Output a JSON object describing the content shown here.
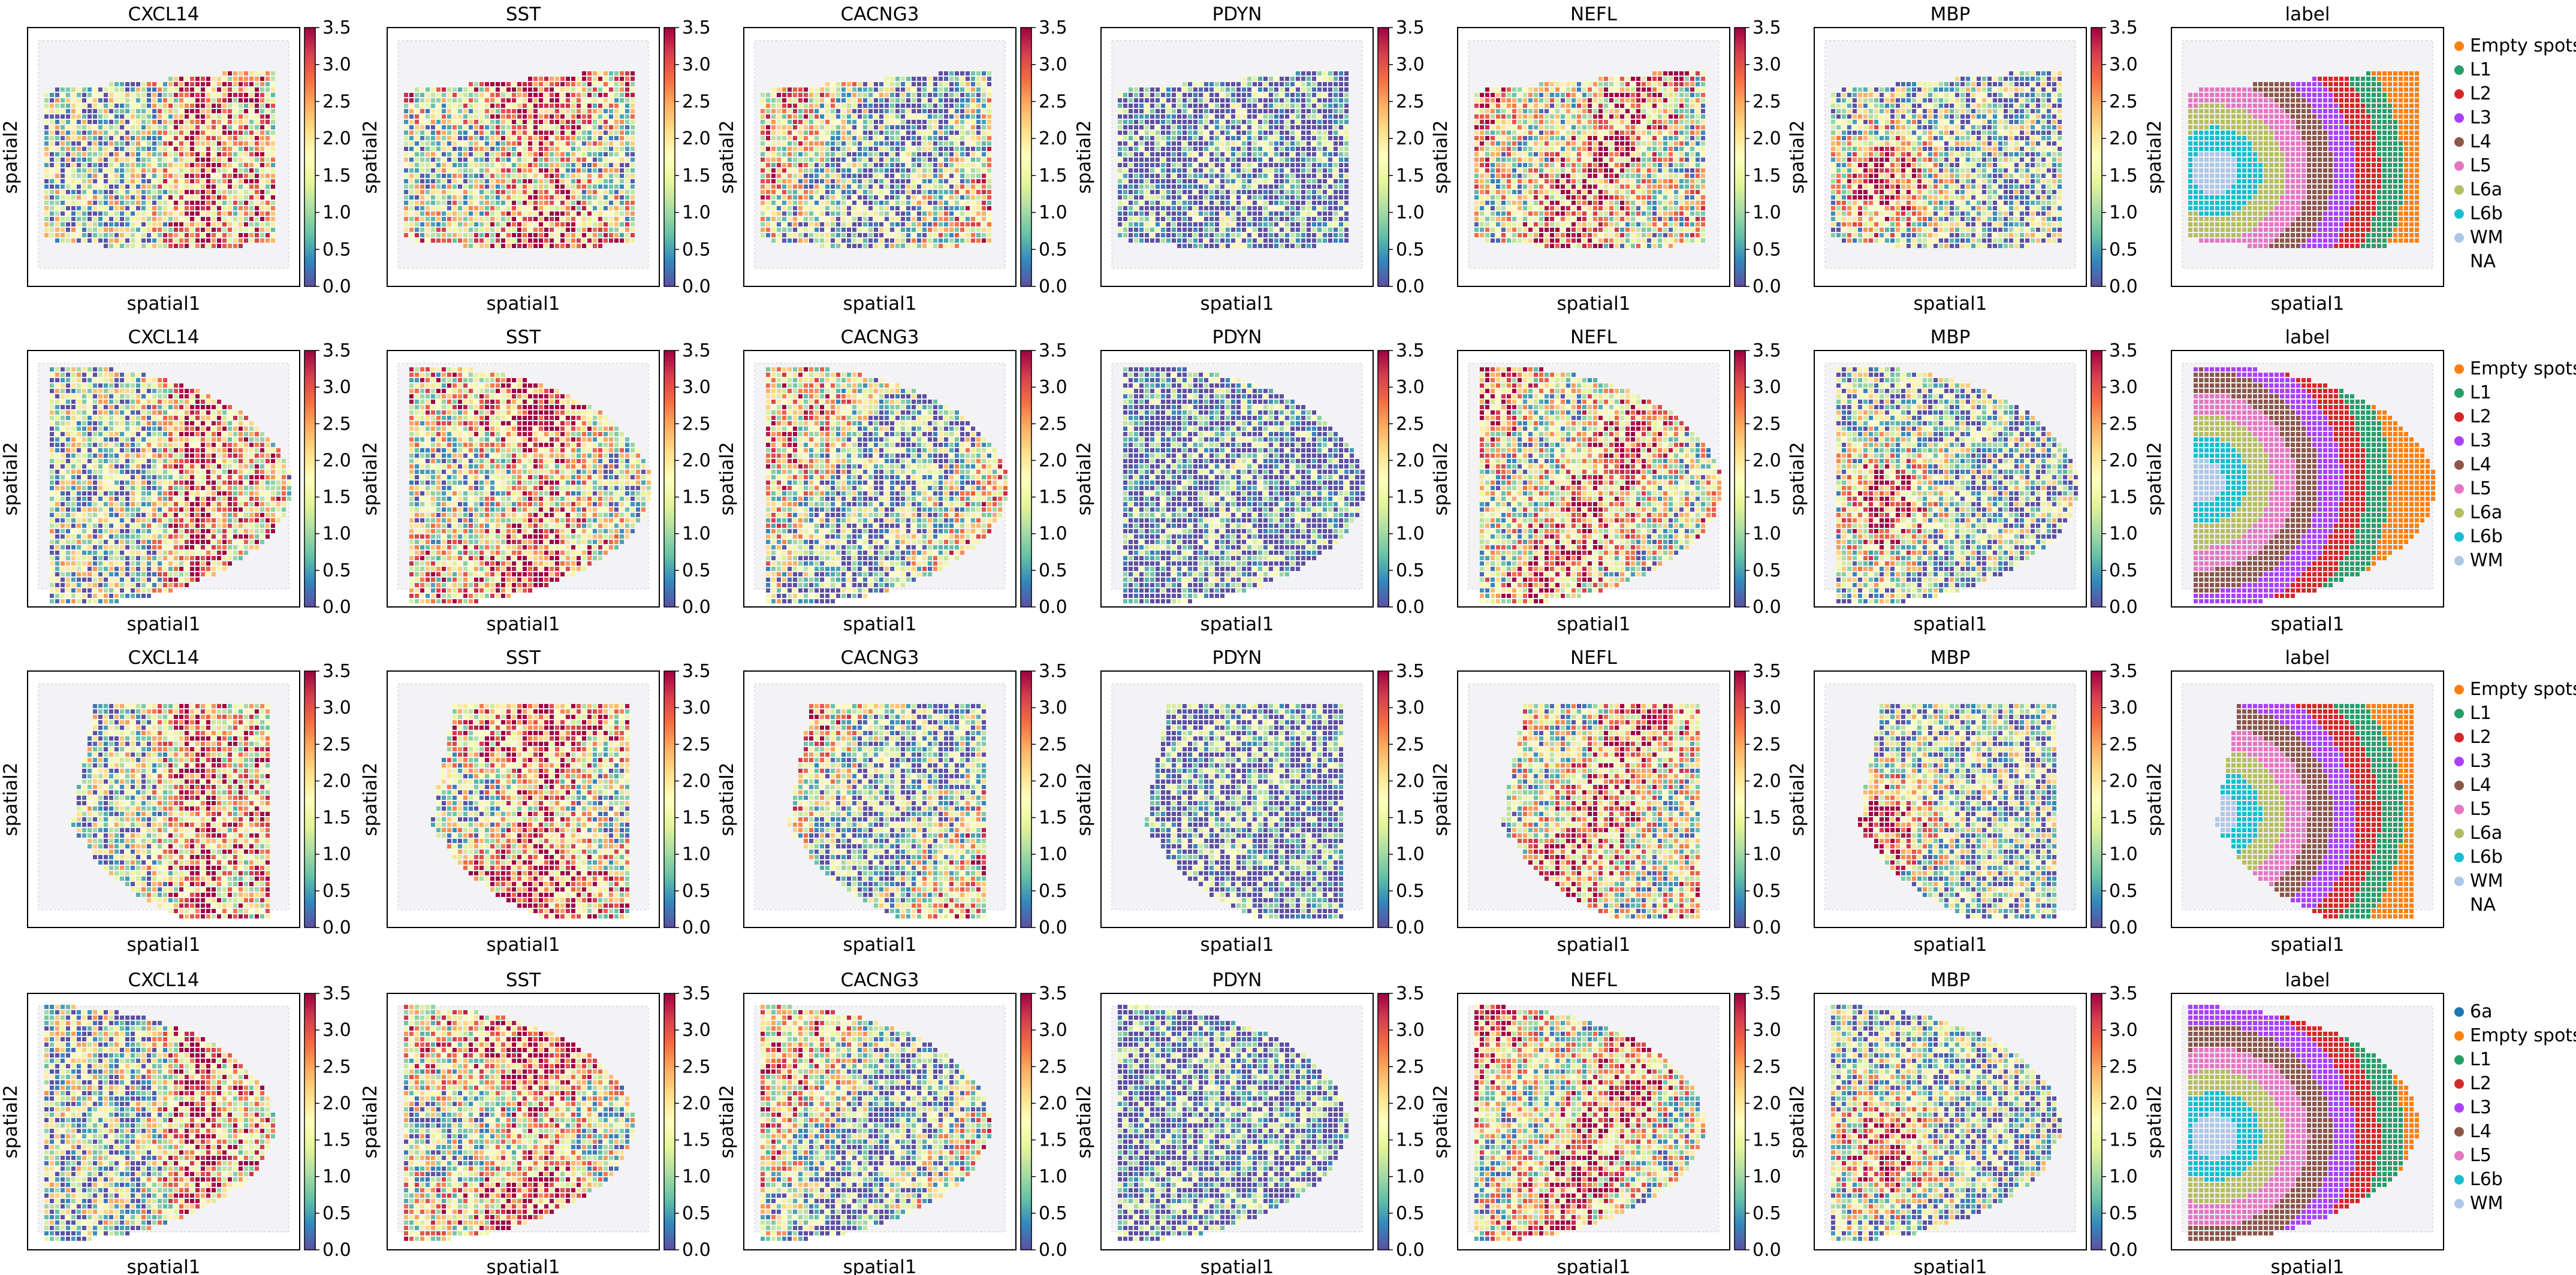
{
  "figure": {
    "rows": 4,
    "columns": 7,
    "panel_titles": [
      "CXCL14",
      "SST",
      "CACNG3",
      "PDYN",
      "NEFL",
      "MBP",
      "label"
    ],
    "xlabel": "spatial1",
    "ylabel": "spatial2"
  },
  "colorbar": {
    "colormap": "Spectral_r",
    "ticks": [
      "0.0",
      "0.5",
      "1.0",
      "1.5",
      "2.0",
      "2.5",
      "3.0",
      "3.5"
    ],
    "range": [
      0,
      3.5
    ],
    "stops": [
      "#5e4fa2",
      "#3288bd",
      "#66c2a5",
      "#abdda4",
      "#e6f598",
      "#ffffbf",
      "#fee08b",
      "#fdae61",
      "#f46d43",
      "#d53e4f",
      "#9e0142"
    ]
  },
  "legend_colors": {
    "6a": "#1f77b4",
    "Empty spots": "#ff7f0e",
    "L1": "#279e68",
    "L2": "#d62728",
    "L3": "#aa40fc",
    "L4": "#8c564b",
    "L5": "#e377c2",
    "L6a": "#b5bd61",
    "L6b": "#17becf",
    "WM": "#aec7e8",
    "NA": "#ffffff"
  },
  "chart_data": [
    {
      "type": "heatmap",
      "row": 1,
      "legend": [
        "Empty spots",
        "L1",
        "L2",
        "L3",
        "L4",
        "L5",
        "L6a",
        "L6b",
        "WM",
        "NA"
      ]
    },
    {
      "type": "heatmap",
      "row": 2,
      "legend": [
        "Empty spots",
        "L1",
        "L2",
        "L3",
        "L4",
        "L5",
        "L6a",
        "L6b",
        "WM"
      ]
    },
    {
      "type": "heatmap",
      "row": 3,
      "legend": [
        "Empty spots",
        "L1",
        "L2",
        "L3",
        "L4",
        "L5",
        "L6a",
        "L6b",
        "WM",
        "NA"
      ]
    },
    {
      "type": "heatmap",
      "row": 4,
      "legend": [
        "6a",
        "Empty spots",
        "L1",
        "L2",
        "L3",
        "L4",
        "L5",
        "L6b",
        "WM"
      ]
    }
  ]
}
